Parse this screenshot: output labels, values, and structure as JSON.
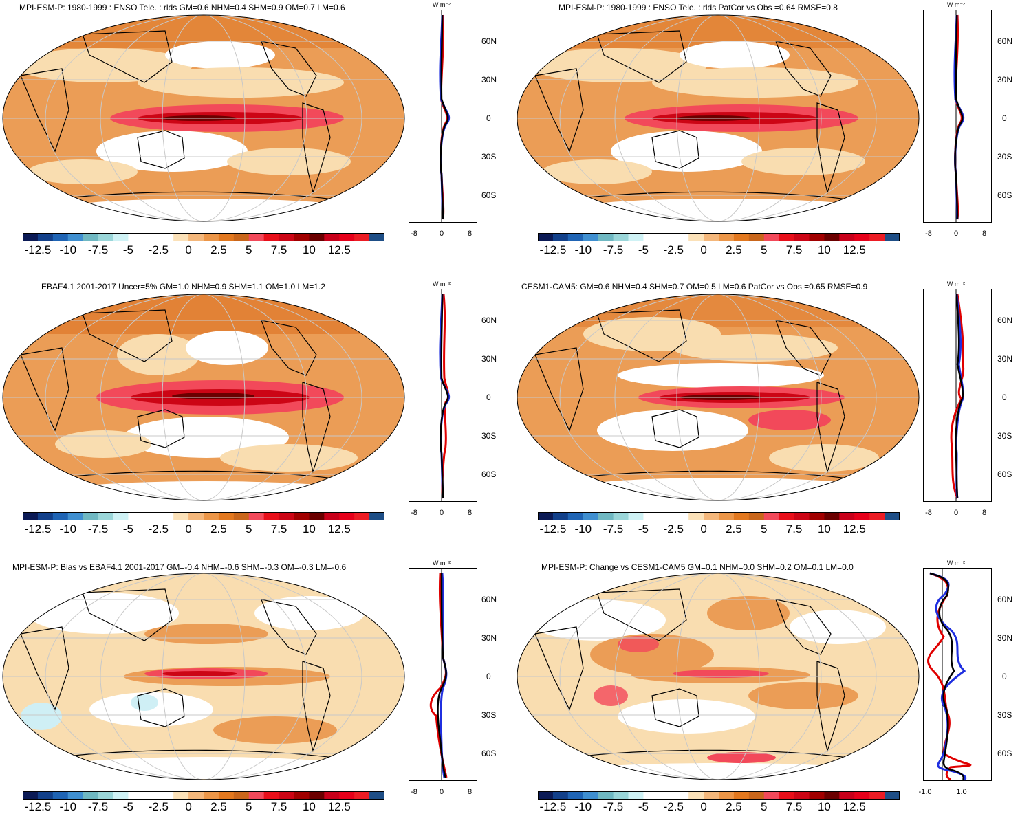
{
  "colors": {
    "warm1": "#f9ddb0",
    "warm2": "#eb9d56",
    "warm3": "#e07c2e",
    "red1": "#f2495a",
    "red2": "#cc0515",
    "darkred": "#6b0000",
    "land": "#ffffff",
    "cold": "#cfeff5",
    "model_line": "#e00000",
    "obs_line": "#1f2fe0",
    "black_line": "#000000"
  },
  "colorbar": {
    "labels": [
      "-12.5",
      "-10",
      "-7.5",
      "-5",
      "-2.5",
      "0",
      "2.5",
      "5",
      "7.5",
      "10",
      "12.5"
    ],
    "colors": [
      "#0b1a55",
      "#12408a",
      "#1f64b4",
      "#3f8fd0",
      "#6fb8c2",
      "#9ad6d9",
      "#cff2f5",
      "#ffffff",
      "#ffffff",
      "#ffffff",
      "#fbe1b8",
      "#f4b77b",
      "#ec9648",
      "#e2781f",
      "#c9661b",
      "#f2495a",
      "#e80f1a",
      "#cc0515",
      "#a10000",
      "#6b0000",
      "#c8001a",
      "#e6001a",
      "#ec1c24",
      "#1e4e86"
    ]
  },
  "panels": [
    {
      "title": "MPI-ESM-P: 1980-1999 : ENSO Tele. : rlds GM=0.6 NHM=0.4 SHM=0.9 OM=0.7 LM=0.6",
      "units": "W m⁻²",
      "lat_labels": [
        "60N",
        "30N",
        "0",
        "30S",
        "60S"
      ],
      "x_ticks": [
        "-8",
        "0",
        "8"
      ]
    },
    {
      "title": "MPI-ESM-P: 1980-1999 : ENSO Tele. : rlds PatCor vs Obs =0.64 RMSE=0.8",
      "units": "W m⁻²",
      "lat_labels": [
        "60N",
        "30N",
        "0",
        "30S",
        "60S"
      ],
      "x_ticks": [
        "-8",
        "0",
        "8"
      ]
    },
    {
      "title": "EBAF4.1 2001-2017 Uncer=5% GM=1.0 NHM=0.9 SHM=1.1 OM=1.0 LM=1.2",
      "units": "W m⁻²",
      "lat_labels": [
        "60N",
        "30N",
        "0",
        "30S",
        "60S"
      ],
      "x_ticks": [
        "-8",
        "0",
        "8"
      ]
    },
    {
      "title": "CESM1-CAM5: GM=0.6 NHM=0.4 SHM=0.7 OM=0.5 LM=0.6 PatCor vs Obs =0.65 RMSE=0.9",
      "units": "W m⁻²",
      "lat_labels": [
        "60N",
        "30N",
        "0",
        "30S",
        "60S"
      ],
      "x_ticks": [
        "-8",
        "0",
        "8"
      ]
    },
    {
      "title": "MPI-ESM-P: Bias vs EBAF4.1 2001-2017 GM=-0.4 NHM=-0.6 SHM=-0.3 OM=-0.3 LM=-0.6",
      "units": "W m⁻²",
      "lat_labels": [
        "60N",
        "30N",
        "0",
        "30S",
        "60S"
      ],
      "x_ticks": [
        "-8",
        "0",
        "8"
      ]
    },
    {
      "title": "MPI-ESM-P: Change vs CESM1-CAM5 GM=0.1 NHM=0.0 SHM=0.2 OM=0.1 LM=0.0",
      "units": "W m⁻²",
      "lat_labels": [
        "60N",
        "30N",
        "0",
        "30S",
        "60S"
      ],
      "x_ticks": [
        "-1.0",
        "1.0"
      ]
    }
  ]
}
